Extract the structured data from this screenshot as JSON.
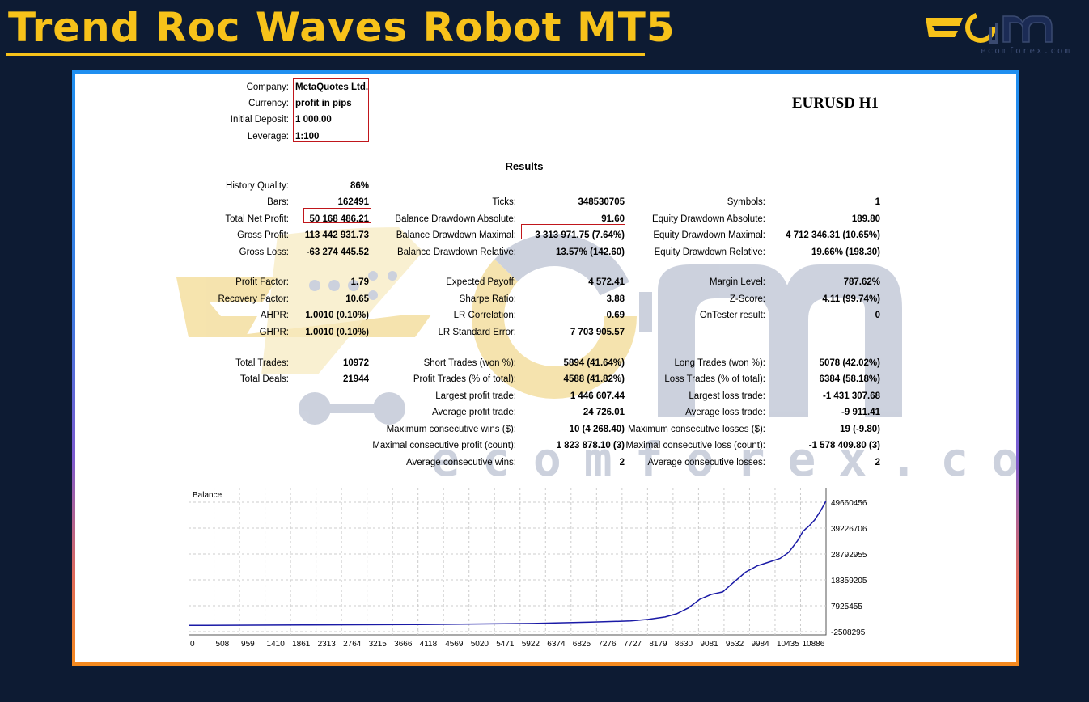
{
  "header": {
    "title": "Trend Roc Waves Robot MT5",
    "logo_text": "ecomforex.com"
  },
  "report": {
    "symbol_timeframe": "EURUSD H1",
    "info": [
      {
        "label": "Company:",
        "value": "MetaQuotes Ltd."
      },
      {
        "label": "Currency:",
        "value": "profit in pips"
      },
      {
        "label": "Initial Deposit:",
        "value": "1 000.00"
      },
      {
        "label": "Leverage:",
        "value": "1:100"
      }
    ],
    "results_title": "Results",
    "col1": [
      {
        "label": "History Quality:",
        "value": "86%"
      },
      {
        "label": "Bars:",
        "value": "162491"
      },
      {
        "label": "Total Net Profit:",
        "value": "50 168 486.21"
      },
      {
        "label": "Gross Profit:",
        "value": "113 442 931.73"
      },
      {
        "label": "Gross Loss:",
        "value": "-63 274 445.52"
      },
      {
        "label": "Profit Factor:",
        "value": "1.79"
      },
      {
        "label": "Recovery Factor:",
        "value": "10.65"
      },
      {
        "label": "AHPR:",
        "value": "1.0010 (0.10%)"
      },
      {
        "label": "GHPR:",
        "value": "1.0010 (0.10%)"
      },
      {
        "label": "Total Trades:",
        "value": "10972"
      },
      {
        "label": "Total Deals:",
        "value": "21944"
      }
    ],
    "col2": [
      {
        "label": "Ticks:",
        "value": "348530705"
      },
      {
        "label": "Balance Drawdown Absolute:",
        "value": "91.60"
      },
      {
        "label": "Balance Drawdown Maximal:",
        "value": "3 313 971.75 (7.64%)"
      },
      {
        "label": "Balance Drawdown Relative:",
        "value": "13.57% (142.60)"
      },
      {
        "label": "Expected Payoff:",
        "value": "4 572.41"
      },
      {
        "label": "Sharpe Ratio:",
        "value": "3.88"
      },
      {
        "label": "LR Correlation:",
        "value": "0.69"
      },
      {
        "label": "LR Standard Error:",
        "value": "7 703 905.57"
      },
      {
        "label": "Short Trades (won %):",
        "value": "5894 (41.64%)"
      },
      {
        "label": "Profit Trades (% of total):",
        "value": "4588 (41.82%)"
      },
      {
        "label": "Largest profit trade:",
        "value": "1 446 607.44"
      },
      {
        "label": "Average profit trade:",
        "value": "24 726.01"
      },
      {
        "label": "Maximum consecutive wins ($):",
        "value": "10 (4 268.40)"
      },
      {
        "label": "Maximal consecutive profit (count):",
        "value": "1 823 878.10 (3)"
      },
      {
        "label": "Average consecutive wins:",
        "value": "2"
      }
    ],
    "col3": [
      {
        "label": "Symbols:",
        "value": "1"
      },
      {
        "label": "Equity Drawdown Absolute:",
        "value": "189.80"
      },
      {
        "label": "Equity Drawdown Maximal:",
        "value": "4 712 346.31 (10.65%)"
      },
      {
        "label": "Equity Drawdown Relative:",
        "value": "19.66% (198.30)"
      },
      {
        "label": "Margin Level:",
        "value": "787.62%"
      },
      {
        "label": "Z-Score:",
        "value": "4.11 (99.74%)"
      },
      {
        "label": "OnTester result:",
        "value": "0"
      },
      {
        "label": "Long Trades (won %):",
        "value": "5078 (42.02%)"
      },
      {
        "label": "Loss Trades (% of total):",
        "value": "6384 (58.18%)"
      },
      {
        "label": "Largest loss trade:",
        "value": "-1 431 307.68"
      },
      {
        "label": "Average loss trade:",
        "value": "-9 911.41"
      },
      {
        "label": "Maximum consecutive losses ($):",
        "value": "19 (-9.80)"
      },
      {
        "label": "Maximal consecutive loss (count):",
        "value": "-1 578 409.80 (3)"
      },
      {
        "label": "Average consecutive losses:",
        "value": "2"
      }
    ]
  },
  "colors": {
    "title": "#f7c21a",
    "background": "#0d1b33",
    "highlight_box": "#c0161b",
    "balance_line": "#1a1aa6"
  },
  "chart_data": {
    "type": "line",
    "title": "Balance",
    "xticks": [
      "0",
      "508",
      "959",
      "1410",
      "1861",
      "2313",
      "2764",
      "3215",
      "3666",
      "4118",
      "4569",
      "5020",
      "5471",
      "5922",
      "6374",
      "6825",
      "7276",
      "7727",
      "8179",
      "8630",
      "9081",
      "9532",
      "9984",
      "10435",
      "10886"
    ],
    "yticks": [
      "49660456",
      "39226706",
      "28792955",
      "18359205",
      "7925455",
      "-2508295"
    ],
    "ylim": [
      -2508295,
      49660456
    ],
    "xlim": [
      0,
      11100
    ],
    "series": [
      {
        "x": [
          0,
          2000,
          4000,
          6000,
          7000,
          7700,
          8000,
          8300,
          8500,
          8700,
          8900,
          9100,
          9300,
          9500,
          9700,
          9900,
          10100,
          10300,
          10450,
          10600,
          10700,
          10800,
          10900,
          11000,
          11100
        ],
        "y": [
          1000,
          150000,
          350000,
          800000,
          1300000,
          1800000,
          2400000,
          3400000,
          4700000,
          7000000,
          10500000,
          12500000,
          13500000,
          17500000,
          21500000,
          24000000,
          25500000,
          27000000,
          29500000,
          34000000,
          38000000,
          40000000,
          42500000,
          46000000,
          50168486
        ]
      }
    ],
    "grid": true
  }
}
